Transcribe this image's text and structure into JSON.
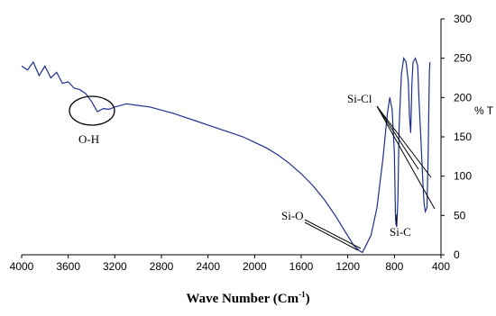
{
  "chart_data": {
    "type": "line",
    "xlabel_main": "Wave Number (Cm",
    "xlabel_sup": "-1",
    "xlabel_end": ")",
    "ylabel": "% T",
    "xlim": [
      4000,
      400
    ],
    "ylim": [
      0,
      300
    ],
    "xticks": [
      "4000",
      "3600",
      "3200",
      "2800",
      "2400",
      "2000",
      "1600",
      "1200",
      "800",
      "400"
    ],
    "yticks": [
      "0",
      "50",
      "100",
      "150",
      "200",
      "250",
      "300"
    ],
    "series": [
      {
        "color": "#1f2f8f",
        "x": [
          4000,
          3950,
          3900,
          3850,
          3800,
          3750,
          3700,
          3650,
          3600,
          3550,
          3500,
          3450,
          3400,
          3350,
          3300,
          3250,
          3200,
          3150,
          3100,
          3000,
          2900,
          2800,
          2700,
          2600,
          2500,
          2400,
          2300,
          2200,
          2100,
          2000,
          1900,
          1800,
          1700,
          1600,
          1500,
          1400,
          1300,
          1250,
          1200,
          1150,
          1100,
          1075,
          1050,
          1000,
          950,
          900,
          860,
          840,
          820,
          800,
          790,
          780,
          770,
          760,
          740,
          720,
          700,
          680,
          670,
          660,
          650,
          640,
          620,
          600,
          590,
          570,
          555,
          545,
          535,
          520,
          510,
          500,
          495
        ],
        "y": [
          240,
          235,
          245,
          228,
          240,
          225,
          232,
          218,
          220,
          212,
          210,
          205,
          195,
          182,
          186,
          185,
          188,
          190,
          192,
          190,
          188,
          184,
          180,
          175,
          170,
          165,
          160,
          155,
          150,
          143,
          136,
          127,
          116,
          103,
          88,
          70,
          48,
          36,
          24,
          12,
          5,
          3,
          10,
          25,
          60,
          120,
          180,
          200,
          185,
          130,
          45,
          35,
          70,
          160,
          230,
          250,
          245,
          220,
          175,
          155,
          215,
          245,
          250,
          240,
          200,
          140,
          90,
          65,
          55,
          60,
          130,
          230,
          245
        ]
      }
    ],
    "annotations": [
      {
        "text": "O-H",
        "type": "circle"
      },
      {
        "text": "Si-Cl",
        "type": "lines"
      },
      {
        "text": "Si-O",
        "type": "line"
      },
      {
        "text": "Si-C",
        "type": "line"
      }
    ]
  }
}
